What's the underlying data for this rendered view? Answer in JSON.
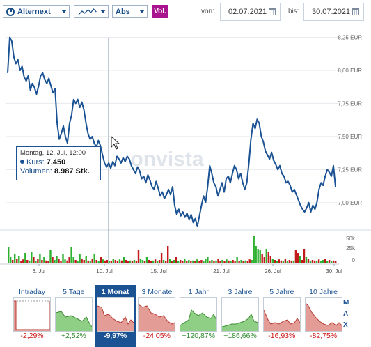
{
  "toolbar": {
    "exchange_label": "Alternext",
    "chart_style_icon": "line-chart-icon",
    "scale_label": "Abs",
    "volume_button": "Vol.",
    "from_label": "von:",
    "from_date": "02.07.2021",
    "to_label": "bis:",
    "to_date": "30.07.2021"
  },
  "tooltip": {
    "date": "Montag, 12. Jul, 12:00",
    "price_label": "Kurs:",
    "price": "7,450",
    "volume_label": "Volumen:",
    "volume": "8.987 Stk."
  },
  "watermark": "onvista",
  "colors": {
    "line": "#1a5293",
    "vol_up": "#2db02d",
    "vol_down": "#c21a1a",
    "accent": "#a8158d",
    "negative": "#cc1111",
    "positive": "#2a8a2a"
  },
  "chart_data": {
    "type": "line",
    "x_tick_labels": [
      "6. Jul",
      "10. Jul",
      "15. Jul",
      "21. Jul",
      "26. Jul",
      "30. Jul"
    ],
    "y_tick_labels": [
      "8,25 EUR",
      "8,00 EUR",
      "7,75 EUR",
      "7,50 EUR",
      "7,25 EUR",
      "7,00 EUR"
    ],
    "y_ticks": [
      8.25,
      8.0,
      7.75,
      7.5,
      7.25,
      7.0
    ],
    "ylim": [
      6.82,
      8.3
    ],
    "volume_tick_labels": [
      "50k",
      "25k",
      "0"
    ],
    "price": [
      7.98,
      8.25,
      8.22,
      8.1,
      8.05,
      8.08,
      8.0,
      8.03,
      7.95,
      7.92,
      7.96,
      7.85,
      7.9,
      7.87,
      7.82,
      7.88,
      7.96,
      7.98,
      7.93,
      7.9,
      7.94,
      7.88,
      7.83,
      7.86,
      7.6,
      7.48,
      7.52,
      7.58,
      7.5,
      7.45,
      7.6,
      7.66,
      7.78,
      7.75,
      7.78,
      7.72,
      7.76,
      7.7,
      7.6,
      7.52,
      7.48,
      7.5,
      7.45,
      7.42,
      7.47,
      7.43,
      7.36,
      7.3,
      7.27,
      7.3,
      7.26,
      7.31,
      7.28,
      7.35,
      7.33,
      7.3,
      7.34,
      7.31,
      7.35,
      7.33,
      7.28,
      7.25,
      7.22,
      7.27,
      7.24,
      7.18,
      7.2,
      7.15,
      7.21,
      7.17,
      7.12,
      7.1,
      7.16,
      7.11,
      7.05,
      7.08,
      7.03,
      7.06,
      7.1,
      7.06,
      7.12,
      6.98,
      6.91,
      6.95,
      6.9,
      6.93,
      6.89,
      6.92,
      6.87,
      6.91,
      6.85,
      6.88,
      6.82,
      6.9,
      6.98,
      7.05,
      7.0,
      7.12,
      7.28,
      7.22,
      7.15,
      7.12,
      7.05,
      7.1,
      7.15,
      7.08,
      7.18,
      7.2,
      7.15,
      7.22,
      7.28,
      7.25,
      7.18,
      7.22,
      7.15,
      7.1,
      7.15,
      7.3,
      7.48,
      7.6,
      7.56,
      7.63,
      7.6,
      7.5,
      7.46,
      7.39,
      7.36,
      7.33,
      7.38,
      7.32,
      7.29,
      7.25,
      7.28,
      7.22,
      7.2,
      7.15,
      7.16,
      7.13,
      7.08,
      7.1,
      7.06,
      7.02,
      6.98,
      6.95,
      6.93,
      6.96,
      7.0,
      6.93,
      6.98,
      6.95,
      7.0,
      7.1,
      7.15,
      7.13,
      7.2,
      7.25,
      7.23,
      7.2,
      7.28,
      7.12
    ],
    "volume": [
      0.55,
      0.2,
      0.1,
      0.3,
      0.15,
      0.25,
      0.05,
      0.12,
      0.35,
      0.1,
      0.08,
      0.4,
      0.2,
      0.05,
      0.15,
      0.3,
      0.1,
      0.2,
      0.08,
      0.05,
      0.45,
      0.2,
      0.1,
      0.25,
      0.15,
      0.05,
      0.3,
      0.12,
      0.08,
      0.2,
      0.55,
      0.2,
      0.1,
      0.05,
      0.3,
      0.15,
      0.1,
      0.25,
      0.08,
      0.05,
      0.15,
      0.3,
      0.1,
      0.05,
      0.2,
      0.12,
      0.08,
      0.1,
      0.05,
      0.05,
      0.15,
      0.1,
      0.05,
      0.12,
      0.08,
      0.2,
      0.1,
      0.05,
      0.08,
      0.05,
      0.1,
      0.05,
      0.45,
      0.15,
      0.1,
      0.05,
      0.2,
      0.1,
      0.05,
      0.08,
      0.12,
      0.05,
      0.1,
      0.35,
      0.1,
      0.05,
      0.6,
      0.15,
      0.05,
      0.1,
      0.2,
      0.05,
      0.1,
      0.05,
      0.15,
      0.05,
      0.1,
      0.05,
      0.08,
      0.05,
      0.12,
      0.05,
      0.1,
      0.05,
      0.15,
      0.2,
      0.05,
      0.1,
      0.05,
      0.08,
      0.15,
      0.05,
      0.1,
      0.05,
      0.12,
      0.08,
      0.05,
      0.1,
      0.05,
      0.2,
      0.05,
      0.1,
      0.05,
      0.08,
      0.05,
      0.12,
      0.1,
      0.95,
      0.6,
      0.5,
      0.45,
      0.3,
      0.2,
      0.5,
      0.4,
      0.25,
      0.15,
      0.1,
      0.05,
      0.12,
      0.08,
      0.05,
      0.15,
      0.05,
      0.1,
      0.05,
      0.08,
      0.45,
      0.35,
      0.25,
      0.1,
      0.5,
      0.2,
      0.15,
      0.05,
      0.1,
      0.08,
      0.05,
      0.12,
      0.05,
      0.1,
      0.15,
      0.05,
      0.1,
      0.05,
      0.08,
      0.05
    ],
    "vol_up": [
      true,
      true,
      false,
      true,
      false,
      true,
      false,
      false,
      true,
      false,
      true,
      true,
      false,
      true,
      false,
      true,
      false,
      true,
      false,
      false,
      true,
      false,
      true,
      true,
      false,
      false,
      true,
      true,
      false,
      false,
      true,
      true,
      false,
      true,
      true,
      false,
      false,
      true,
      false,
      true,
      false,
      true,
      false,
      true,
      false,
      true,
      false,
      false,
      true,
      false,
      true,
      false,
      false,
      true,
      false,
      true,
      false,
      false,
      true,
      false,
      true,
      false,
      false,
      true,
      true,
      false,
      true,
      false,
      false,
      true,
      false,
      true,
      false,
      false,
      true,
      false,
      false,
      true,
      false,
      true,
      false,
      true,
      false,
      false,
      true,
      false,
      true,
      false,
      true,
      false,
      true,
      false,
      false,
      true,
      true,
      true,
      false,
      true,
      false,
      true,
      false,
      false,
      true,
      false,
      true,
      false,
      true,
      false,
      false,
      true,
      false,
      true,
      false,
      true,
      false,
      false,
      true,
      true,
      true,
      true,
      true,
      false,
      false,
      true,
      false,
      false,
      true,
      false,
      true,
      false,
      false,
      true,
      false,
      true,
      false,
      false,
      true,
      false,
      false,
      true,
      false,
      false,
      true,
      false,
      true,
      false,
      false,
      true,
      false,
      true,
      true,
      false,
      true,
      false,
      true,
      false
    ]
  },
  "periods": [
    {
      "name": "Intraday",
      "change": "-2,29%",
      "sign": "neg"
    },
    {
      "name": "5 Tage",
      "change": "+2,52%",
      "sign": "pos"
    },
    {
      "name": "1 Monat",
      "change": "-9,97%",
      "sign": "neg",
      "active": true
    },
    {
      "name": "3 Monate",
      "change": "-24,05%",
      "sign": "neg"
    },
    {
      "name": "1 Jahr",
      "change": "+120,87%",
      "sign": "pos"
    },
    {
      "name": "3 Jahre",
      "change": "+186,66%",
      "sign": "pos"
    },
    {
      "name": "5 Jahre",
      "change": "-16,93%",
      "sign": "neg"
    },
    {
      "name": "10 Jahre",
      "change": "-82,75%",
      "sign": "neg"
    }
  ],
  "max_letters": [
    "M",
    "A",
    "X"
  ]
}
